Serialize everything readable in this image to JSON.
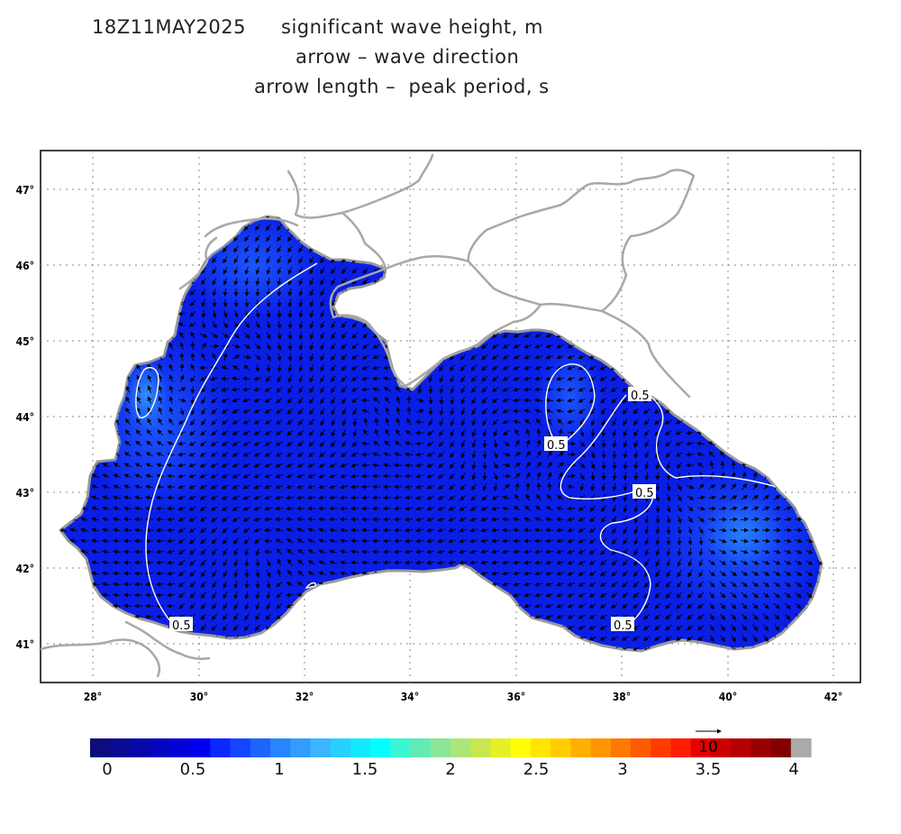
{
  "header": {
    "timestamp": "18Z11MAY2025",
    "title": "significant wave height, m",
    "line2": "arrow – wave direction",
    "line3": "arrow length –  peak period, s"
  },
  "map": {
    "lon_ticks": [
      "28°",
      "30°",
      "32°",
      "34°",
      "36°",
      "38°",
      "40°",
      "42°"
    ],
    "lat_ticks": [
      "47°",
      "46°",
      "45°",
      "44°",
      "43°",
      "42°",
      "41°"
    ],
    "contour_labels": [
      "0.5",
      "0.5",
      "0.5",
      "0.5",
      "0.5"
    ],
    "sea_color": "#0a1ee6",
    "land_line_color": "#a8a8a8",
    "contour_color": "#ffffff"
  },
  "reference_arrow": {
    "label": "10"
  },
  "colorbar": {
    "labels": [
      "0",
      "0.5",
      "1",
      "1.5",
      "2",
      "2.5",
      "3",
      "3.5",
      "4"
    ],
    "colors": [
      "#0c0c7a",
      "#0a0a92",
      "#0707a8",
      "#0505c2",
      "#0303d8",
      "#0000f0",
      "#0a28ff",
      "#1446ff",
      "#1e64ff",
      "#2884ff",
      "#329cff",
      "#3cb4ff",
      "#28d0ff",
      "#14e8ff",
      "#00ffff",
      "#3cf5d2",
      "#64ebb4",
      "#8ce696",
      "#aae678",
      "#c8e650",
      "#e6f028",
      "#ffff00",
      "#ffe600",
      "#ffcd00",
      "#ffaf00",
      "#ff9600",
      "#ff7800",
      "#ff5a00",
      "#ff3c00",
      "#ff1e00",
      "#e60000",
      "#cd0000",
      "#b40000",
      "#9b0000",
      "#820000",
      "#aaaaaa"
    ]
  }
}
